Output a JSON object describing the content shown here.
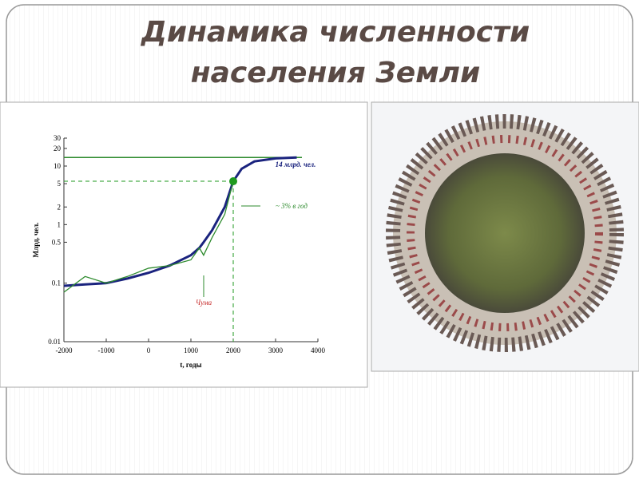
{
  "slide": {
    "title_lines": [
      "Динамика численности",
      "населения Земли"
    ]
  },
  "chart_data": {
    "type": "line",
    "x_label": "t, годы",
    "y_label": "Млрд. чел.",
    "x": [
      -2000,
      -1500,
      -1000,
      -500,
      0,
      500,
      1000,
      1200,
      1300,
      1500,
      1800,
      2000,
      2200,
      2500,
      3000,
      3500
    ],
    "series": [
      {
        "color": "#1a237e",
        "values": [
          0.09,
          0.095,
          0.1,
          0.12,
          0.15,
          0.2,
          0.3,
          0.4,
          0.5,
          0.8,
          2,
          5.5,
          9,
          12,
          13.5,
          14
        ]
      },
      {
        "color": "#2e8b2e",
        "values": [
          0.07,
          0.13,
          0.1,
          0.13,
          0.18,
          0.2,
          0.25,
          0.4,
          0.3,
          0.6,
          1.5,
          5.5,
          null,
          null,
          null,
          null
        ]
      }
    ],
    "xlim": [
      -2000,
      4000
    ],
    "xticks": [
      -2000,
      -1000,
      0,
      1000,
      2000,
      3000,
      4000
    ],
    "ylim": [
      0.01,
      30
    ],
    "yticks": [
      0.01,
      0.1,
      0.5,
      1,
      2,
      5,
      10,
      20,
      30
    ],
    "log_y": true,
    "hline": {
      "value": 14,
      "color": "#2e8b2e"
    },
    "point": {
      "x": 2000,
      "y": 5.5,
      "color": "#1f9a1f"
    },
    "annotations": [
      "14 млрд. чел.",
      "~ 3% в год",
      "Чума"
    ]
  }
}
